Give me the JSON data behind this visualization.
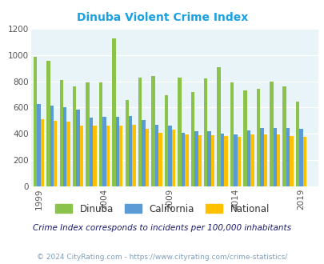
{
  "title": "Dinuba Violent Crime Index",
  "subtitle": "Crime Index corresponds to incidents per 100,000 inhabitants",
  "footer": "© 2024 CityRating.com - https://www.cityrating.com/crime-statistics/",
  "years": [
    1999,
    2000,
    2001,
    2002,
    2003,
    2004,
    2005,
    2006,
    2007,
    2008,
    2009,
    2010,
    2011,
    2012,
    2013,
    2014,
    2015,
    2016,
    2017,
    2018,
    2019,
    2020
  ],
  "dinuba": [
    985,
    955,
    810,
    760,
    790,
    795,
    1130,
    660,
    830,
    840,
    695,
    830,
    720,
    825,
    910,
    790,
    730,
    745,
    800,
    760,
    645,
    0
  ],
  "california": [
    625,
    615,
    600,
    585,
    525,
    530,
    530,
    535,
    505,
    470,
    465,
    410,
    420,
    420,
    400,
    395,
    425,
    445,
    445,
    445,
    440,
    0
  ],
  "national": [
    510,
    500,
    495,
    465,
    465,
    460,
    465,
    470,
    435,
    405,
    430,
    395,
    390,
    390,
    385,
    375,
    395,
    395,
    395,
    380,
    375,
    0
  ],
  "xticks": [
    1999,
    2004,
    2009,
    2014,
    2019
  ],
  "ylim": [
    0,
    1200
  ],
  "yticks": [
    0,
    200,
    400,
    600,
    800,
    1000,
    1200
  ],
  "color_dinuba": "#8bc34a",
  "color_california": "#5b9bd5",
  "color_national": "#ffc000",
  "bg_color": "#e8f4f8",
  "title_color": "#1ba0e2",
  "subtitle_color": "#1a1a6e",
  "footer_color": "#7f9db9",
  "legend_text_color": "#333333",
  "bar_width": 0.27,
  "legend_labels": [
    "Dinuba",
    "California",
    "National"
  ]
}
